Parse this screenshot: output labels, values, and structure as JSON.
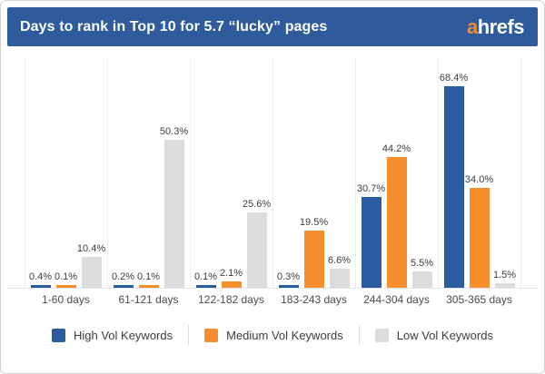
{
  "header": {
    "title": "Days to rank in Top 10 for 5.7 “lucky” pages",
    "logo_a": "a",
    "logo_rest": "hrefs"
  },
  "colors": {
    "header_bg": "#2d5b9b",
    "high": "#2b5ca0",
    "medium": "#f78e2d",
    "low": "#dcdcdc",
    "logo_accent": "#f18a38"
  },
  "chart_data": {
    "type": "bar",
    "title": "Days to rank in Top 10 for 5.7 “lucky” pages",
    "categories": [
      "1-60 days",
      "61-121 days",
      "122-182 days",
      "183-243 days",
      "244-304 days",
      "305-365 days"
    ],
    "series": [
      {
        "name": "High Vol Keywords",
        "color_key": "high",
        "values": [
          0.4,
          0.2,
          0.1,
          0.3,
          30.7,
          68.4
        ],
        "labels": [
          "0.4%",
          "0.2%",
          "0.1%",
          "0.3%",
          "30.7%",
          "68.4%"
        ]
      },
      {
        "name": "Medium Vol Keywords",
        "color_key": "medium",
        "values": [
          0.1,
          0.1,
          2.1,
          19.5,
          44.2,
          34.0
        ],
        "labels": [
          "0.1%",
          "0.1%",
          "2.1%",
          "19.5%",
          "44.2%",
          "34.0%"
        ]
      },
      {
        "name": "Low Vol Keywords",
        "color_key": "low",
        "values": [
          10.4,
          50.3,
          25.6,
          6.6,
          5.5,
          1.5
        ],
        "labels": [
          "10.4%",
          "50.3%",
          "25.6%",
          "6.6%",
          "5.5%",
          "1.5%"
        ]
      }
    ],
    "value_suffix": "%",
    "xlabel": "",
    "ylabel": "",
    "ylim": [
      0,
      75
    ],
    "grid": "vertical-dotted",
    "legend_position": "bottom"
  },
  "legend": {
    "items": [
      {
        "label": "High Vol Keywords",
        "color_key": "high"
      },
      {
        "label": "Medium Vol Keywords",
        "color_key": "medium"
      },
      {
        "label": "Low Vol Keywords",
        "color_key": "low"
      }
    ]
  }
}
